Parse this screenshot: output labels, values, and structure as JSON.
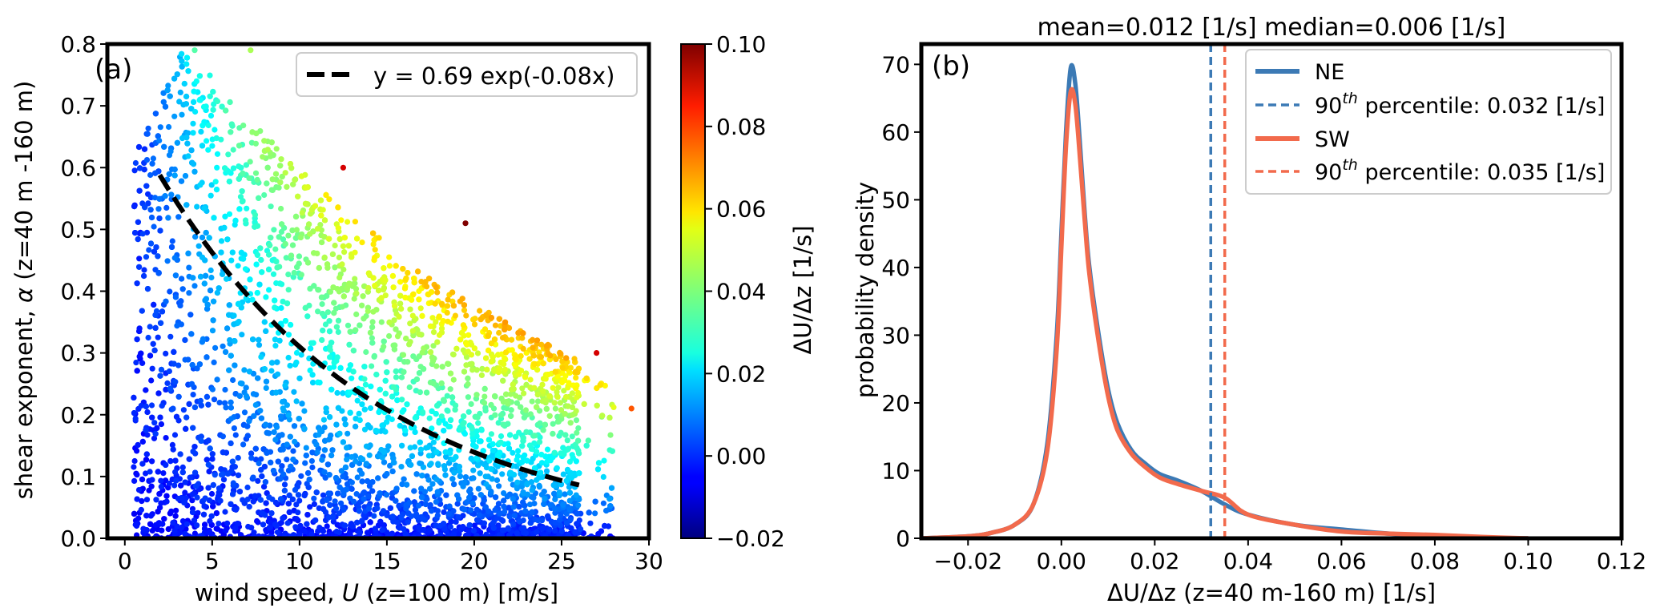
{
  "chart_data": [
    {
      "panel": "a",
      "type": "scatter",
      "panel_label": "(a)",
      "xlabel_prefix": "wind speed, ",
      "xlabel_var": "U",
      "xlabel_suffix": " (z=100 m) [m/s]",
      "ylabel_prefix": "shear exponent, ",
      "ylabel_var": "α",
      "ylabel_suffix": " (z=40 m -160 m)",
      "xlim": [
        -1,
        30
      ],
      "ylim": [
        0,
        0.8
      ],
      "xticks": [
        0,
        5,
        10,
        15,
        20,
        25,
        30
      ],
      "xtick_labels": [
        "0",
        "5",
        "10",
        "15",
        "20",
        "25",
        "30"
      ],
      "yticks": [
        0,
        0.1,
        0.2,
        0.3,
        0.4,
        0.5,
        0.6,
        0.7,
        0.8
      ],
      "ytick_labels": [
        "0.0",
        "0.1",
        "0.2",
        "0.3",
        "0.4",
        "0.5",
        "0.6",
        "0.7",
        "0.8"
      ],
      "color_variable": "ΔU/Δz [1/s]",
      "fit": {
        "label": "y = 0.69 exp(-0.08x)",
        "a": 0.69,
        "b": -0.08,
        "x_range": [
          2,
          26
        ],
        "style": "dashed",
        "color": "#000000"
      },
      "density_summary": "about 20000 points; colour rises with wind speed and shear exponent; dense low-shear cloud from U=0.5 to 25 m/s, upper envelope roughly 0.8 at U=3 falling to 0.2 at U=29",
      "scatter_points": [
        {
          "x": 29,
          "y": 0.21,
          "c": 0.075
        },
        {
          "x": 19.5,
          "y": 0.51,
          "c": 0.1
        },
        {
          "x": 4,
          "y": 0.79,
          "c": 0.035
        },
        {
          "x": 7.2,
          "y": 0.79,
          "c": 0.045
        },
        {
          "x": 27,
          "y": 0.3,
          "c": 0.09
        },
        {
          "x": 12.5,
          "y": 0.6,
          "c": 0.09
        }
      ]
    },
    {
      "panel": "b",
      "type": "line",
      "panel_label": "(b)",
      "title": "mean=0.012 [1/s] median=0.006 [1/s]",
      "xlabel": "ΔU/Δz (z=40 m-160 m) [1/s]",
      "ylabel": "probability density",
      "xlim": [
        -0.03,
        0.12
      ],
      "ylim": [
        0,
        73
      ],
      "xticks": [
        -0.02,
        0.0,
        0.02,
        0.04,
        0.06,
        0.08,
        0.1,
        0.12
      ],
      "xtick_labels": [
        "−0.02",
        "0.00",
        "0.02",
        "0.04",
        "0.06",
        "0.08",
        "0.10",
        "0.12"
      ],
      "yticks": [
        0,
        10,
        20,
        30,
        40,
        50,
        60,
        70
      ],
      "ytick_labels": [
        "0",
        "10",
        "20",
        "30",
        "40",
        "50",
        "60",
        "70"
      ],
      "series": [
        {
          "name": "NE",
          "color": "#3c7ab5",
          "x": [
            -0.03,
            -0.02,
            -0.015,
            -0.01,
            -0.006,
            -0.003,
            -0.001,
            0.0,
            0.001,
            0.002,
            0.003,
            0.004,
            0.005,
            0.006,
            0.008,
            0.01,
            0.012,
            0.015,
            0.018,
            0.021,
            0.025,
            0.03,
            0.035,
            0.04,
            0.05,
            0.06,
            0.07,
            0.08,
            0.09,
            0.1
          ],
          "y": [
            0,
            0.3,
            0.8,
            2,
            5,
            14,
            30,
            45,
            60,
            69.5,
            67,
            58,
            48,
            40,
            30,
            22,
            17,
            13,
            11,
            9.5,
            8.5,
            7,
            5,
            3.5,
            2,
            1.3,
            0.7,
            0.3,
            0.1,
            0
          ]
        },
        {
          "name": "SW",
          "color": "#f26a4c",
          "x": [
            -0.03,
            -0.02,
            -0.015,
            -0.01,
            -0.006,
            -0.003,
            -0.001,
            0.0,
            0.001,
            0.002,
            0.003,
            0.004,
            0.005,
            0.006,
            0.008,
            0.01,
            0.012,
            0.015,
            0.018,
            0.021,
            0.025,
            0.03,
            0.035,
            0.04,
            0.05,
            0.06,
            0.07,
            0.08,
            0.09,
            0.1
          ],
          "y": [
            0,
            0.3,
            0.8,
            2,
            5,
            13,
            28,
            43,
            58,
            66,
            64,
            56,
            47,
            39,
            29,
            21,
            16,
            12.5,
            10.5,
            9,
            8,
            7,
            6,
            3.5,
            2,
            1,
            0.7,
            0.5,
            0.2,
            0
          ]
        }
      ],
      "vlines": [
        {
          "x": 0.032,
          "color": "#3c7ab5",
          "style": "dashed"
        },
        {
          "x": 0.035,
          "color": "#f26a4c",
          "style": "dashed"
        }
      ],
      "legend": [
        {
          "label": "NE",
          "color": "#3c7ab5",
          "style": "solid"
        },
        {
          "label_prefix": "90",
          "label_sup": "th",
          "label_suffix": " percentile: 0.032 [1/s]",
          "color": "#3c7ab5",
          "style": "dashed"
        },
        {
          "label": "SW",
          "color": "#f26a4c",
          "style": "solid"
        },
        {
          "label_prefix": "90",
          "label_sup": "th",
          "label_suffix": " percentile: 0.035 [1/s]",
          "color": "#f26a4c",
          "style": "dashed"
        }
      ],
      "legend_location": "top-right"
    }
  ],
  "colorbar": {
    "label": "ΔU/Δz [1/s]",
    "range": [
      -0.02,
      0.1
    ],
    "ticks": [
      -0.02,
      0.0,
      0.02,
      0.04,
      0.06,
      0.08,
      0.1
    ],
    "tick_labels": [
      "−0.02",
      "0.00",
      "0.02",
      "0.04",
      "0.06",
      "0.08",
      "0.10"
    ],
    "colormap": "jet"
  }
}
